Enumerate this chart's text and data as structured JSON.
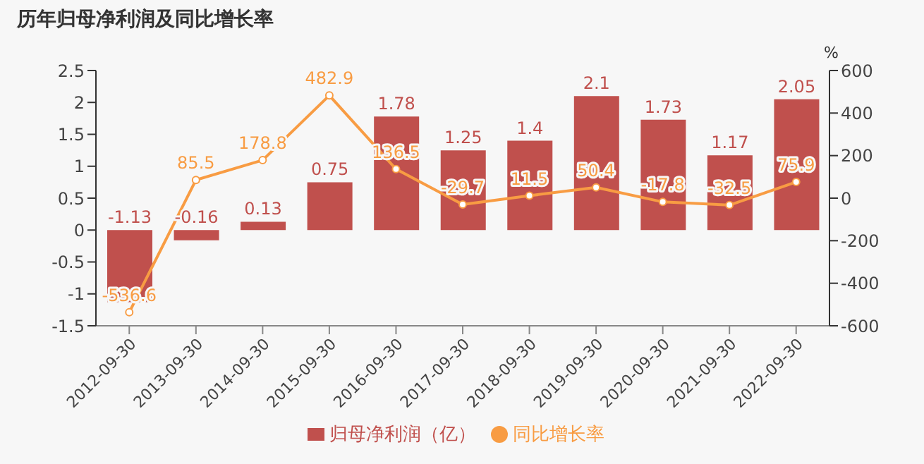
{
  "chart_data": {
    "type": "bar",
    "title": "历年归母净利润及同比增长率",
    "categories": [
      "2012-09-30",
      "2013-09-30",
      "2014-09-30",
      "2015-09-30",
      "2016-09-30",
      "2017-09-30",
      "2018-09-30",
      "2019-09-30",
      "2020-09-30",
      "2021-09-30",
      "2022-09-30"
    ],
    "series": [
      {
        "name": "归母净利润（亿）",
        "color": "#c0504d",
        "values": [
          -1.13,
          -0.16,
          0.13,
          0.75,
          1.78,
          1.25,
          1.4,
          2.1,
          1.73,
          1.17,
          2.05
        ]
      },
      {
        "name": "同比增长率",
        "type": "line",
        "axis": "y2",
        "color": "#f89c43",
        "values": [
          -536.6,
          85.5,
          178.8,
          482.9,
          136.5,
          -29.7,
          11.5,
          50.4,
          -17.8,
          -32.5,
          75.9
        ]
      }
    ],
    "ylim": [
      -1.5,
      2.5
    ],
    "yticks": [
      -1.5,
      -1,
      -0.5,
      0,
      0.5,
      1,
      1.5,
      2,
      2.5
    ],
    "y2label": "%",
    "y2lim": [
      -600,
      600
    ],
    "y2ticks": [
      -600,
      -400,
      -200,
      0,
      200,
      400,
      600
    ],
    "data_labels": true,
    "legend": "bottom",
    "marker": "circle",
    "grid": false
  }
}
